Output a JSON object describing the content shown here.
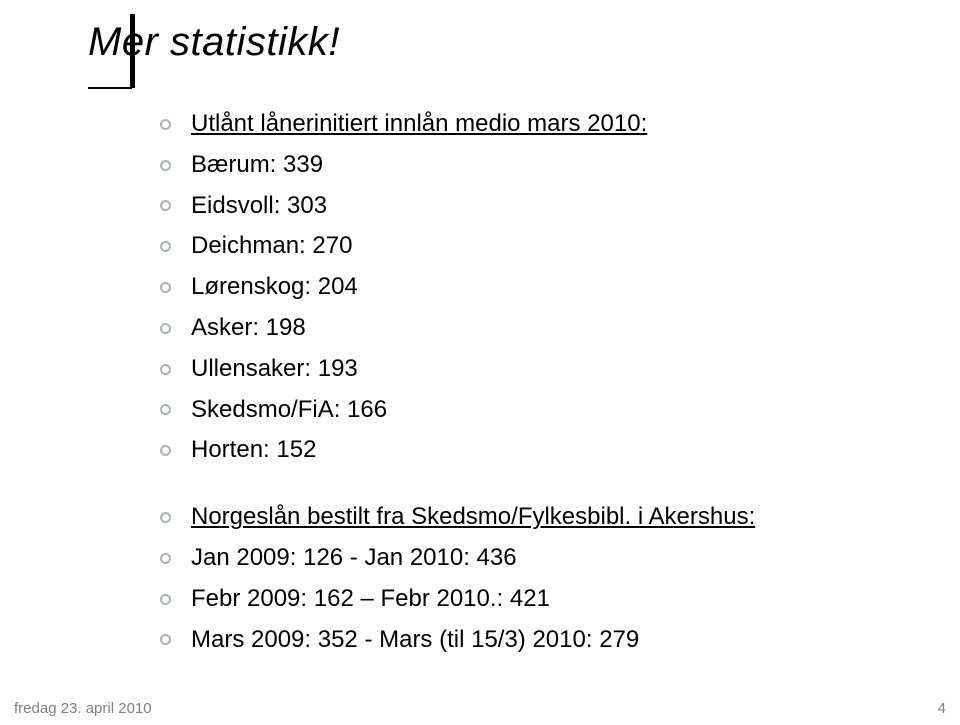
{
  "title": "Mer statistikk!",
  "items": [
    {
      "text": "Utlånt lånerinitiert innlån medio mars 2010:",
      "underline": true
    },
    {
      "text": "Bærum: 339"
    },
    {
      "text": "Eidsvoll: 303"
    },
    {
      "text": "Deichman: 270"
    },
    {
      "text": "Lørenskog: 204"
    },
    {
      "text": "Asker: 198"
    },
    {
      "text": "Ullensaker: 193"
    },
    {
      "text": "Skedsmo/FiA: 166"
    },
    {
      "text": "Horten: 152"
    },
    {
      "gap": true
    },
    {
      "text": "Norgeslån bestilt fra Skedsmo/Fylkesbibl. i Akershus:",
      "underline": true
    },
    {
      "text": "Jan 2009: 126 - Jan 2010: 436"
    },
    {
      "text": "Febr 2009: 162 – Febr 2010.: 421"
    },
    {
      "text": "Mars 2009: 352 - Mars (til 15/3) 2010: 279"
    }
  ],
  "footer": {
    "date": "fredag 23. april 2010",
    "page": "4"
  },
  "style": {
    "title_fontsize": 40,
    "title_italic": true,
    "item_fontsize": 24,
    "bullet_border_color": "#a9b5b3",
    "bullet_size": 11,
    "footer_color": "#808080",
    "footer_fontsize": 15,
    "background": "#ffffff"
  }
}
